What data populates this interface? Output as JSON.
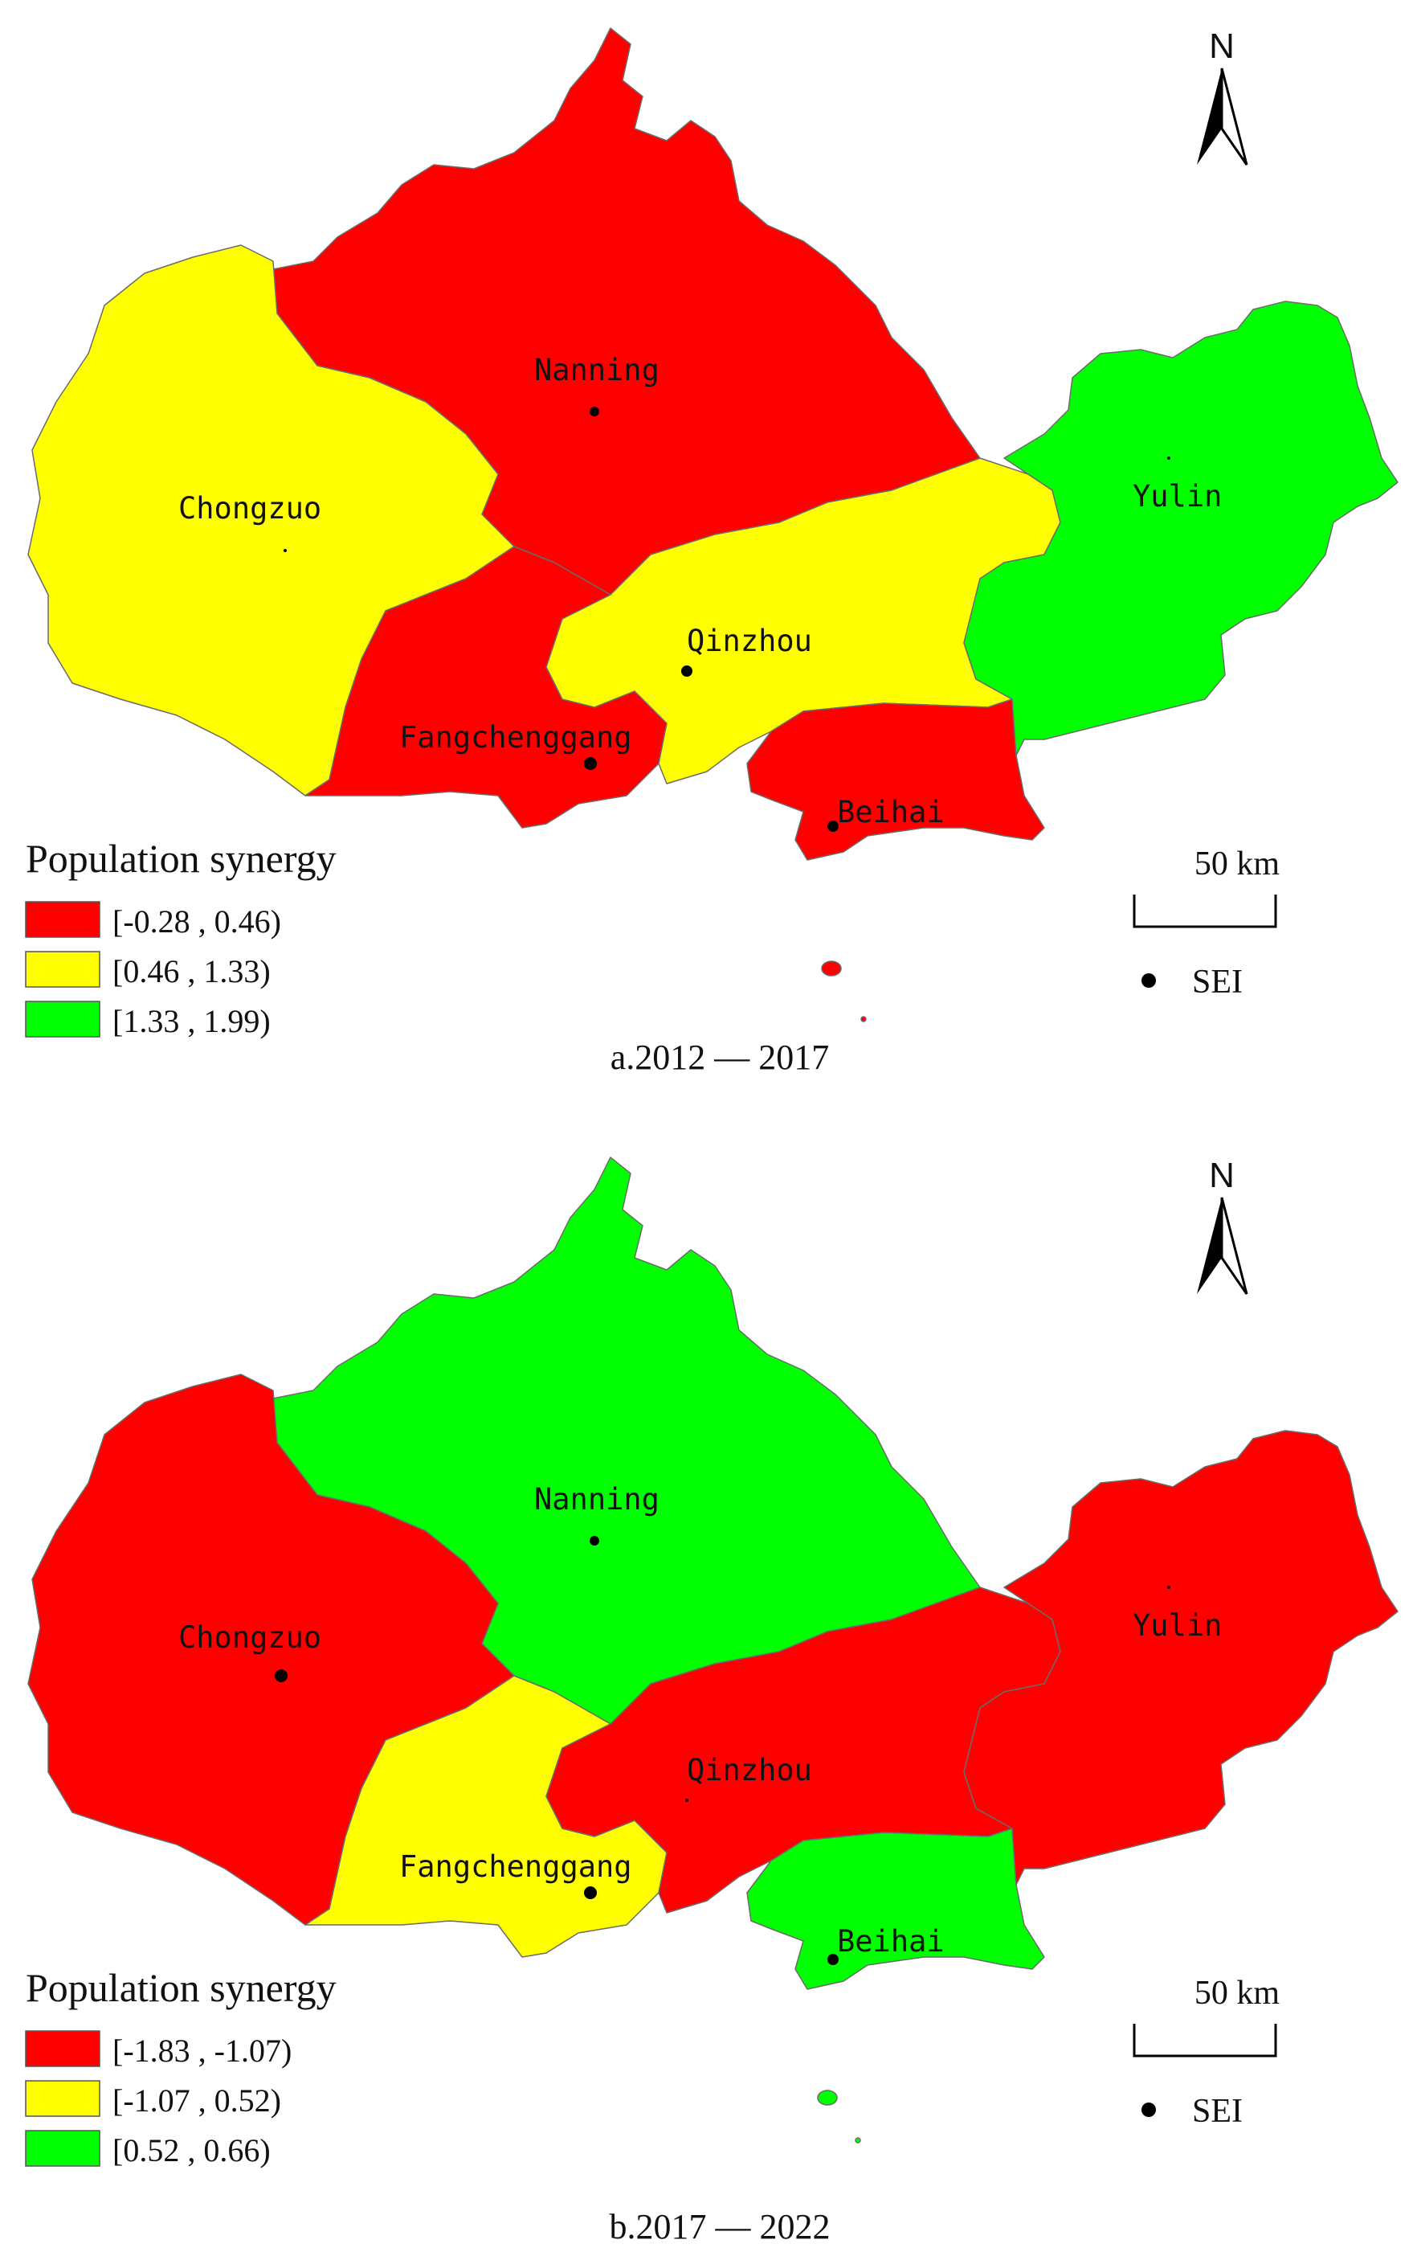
{
  "colors": {
    "red": "#ff0000",
    "yellow": "#ffff00",
    "green": "#00ff00"
  },
  "icons": {
    "north_arrow": "north-arrow-icon",
    "sei_marker": "filled-circle-icon"
  },
  "panels": [
    {
      "caption": "a.2012 — 2017",
      "legend": {
        "title": "Population synergy",
        "items": [
          {
            "label": "[-0.28 , 0.46)",
            "color": "red"
          },
          {
            "label": "[0.46 , 1.33)",
            "color": "yellow"
          },
          {
            "label": "[1.33 , 1.99)",
            "color": "green"
          }
        ]
      },
      "regions": {
        "Nanning": "red",
        "Chongzuo": "yellow",
        "Qinzhou": "yellow",
        "Fangchenggang": "red",
        "Beihai": "red",
        "Yulin": "green"
      },
      "city_labels": [
        "Nanning",
        "Chongzuo",
        "Qinzhou",
        "Fangchenggang",
        "Beihai",
        "Yulin"
      ],
      "north": "N",
      "scale": "50 km",
      "sei_label": "SEI"
    },
    {
      "caption": "b.2017 — 2022",
      "legend": {
        "title": "Population synergy",
        "items": [
          {
            "label": "[-1.83 , -1.07)",
            "color": "red"
          },
          {
            "label": "[-1.07 , 0.52)",
            "color": "yellow"
          },
          {
            "label": "[0.52 , 0.66)",
            "color": "green"
          }
        ]
      },
      "regions": {
        "Nanning": "green",
        "Chongzuo": "red",
        "Qinzhou": "red",
        "Fangchenggang": "yellow",
        "Beihai": "green",
        "Yulin": "red"
      },
      "city_labels": [
        "Nanning",
        "Chongzuo",
        "Qinzhou",
        "Fangchenggang",
        "Beihai",
        "Yulin"
      ],
      "north": "N",
      "scale": "50 km",
      "sei_label": "SEI"
    }
  ]
}
